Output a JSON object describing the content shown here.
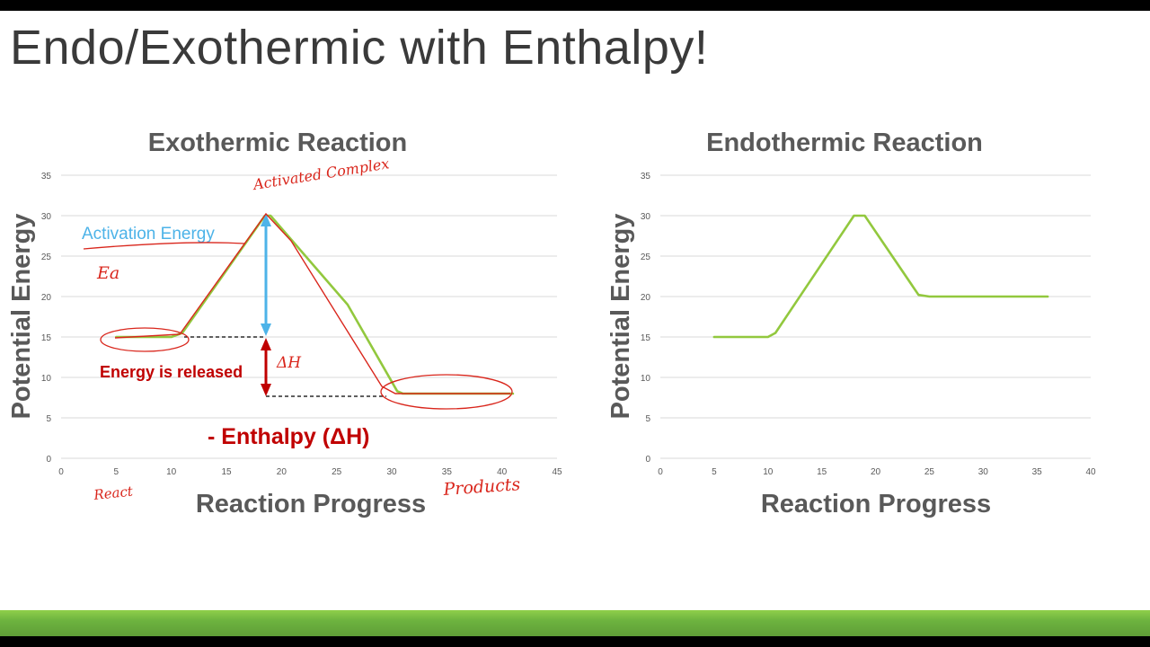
{
  "slide": {
    "title": "Endo/Exothermic with Enthalpy!"
  },
  "colors": {
    "line": "#92c83e",
    "annotation_red": "#c00000",
    "annotation_blue": "#4db3e8",
    "ink_red": "#d9261c",
    "grid": "#d9d9d9",
    "text": "#595959"
  },
  "annotations": {
    "activation_energy": "Activation Energy",
    "energy_released": "Energy is released",
    "enthalpy": "- Enthalpy (ΔH)"
  },
  "handwriting": {
    "activated_complex": "Activated Complex",
    "ea": "Ea",
    "delta_h": "ΔH",
    "react": "React",
    "products": "Products"
  },
  "chart_data": [
    {
      "type": "line",
      "title": "Exothermic Reaction",
      "xlabel": "Reaction Progress",
      "ylabel": "Potential Energy",
      "xlim": [
        0,
        45
      ],
      "ylim": [
        0,
        35
      ],
      "xticks": [
        0,
        5,
        10,
        15,
        20,
        25,
        30,
        35,
        40,
        45
      ],
      "yticks": [
        0,
        5,
        10,
        15,
        20,
        25,
        30,
        35
      ],
      "grid": true,
      "x": [
        5,
        10,
        11,
        18.5,
        19,
        26,
        30.5,
        31,
        35,
        41
      ],
      "y": [
        15,
        15,
        15.5,
        30,
        30,
        19,
        8.3,
        8,
        8,
        8
      ]
    },
    {
      "type": "line",
      "title": "Endothermic Reaction",
      "xlabel": "Reaction Progress",
      "ylabel": "Potential Energy",
      "xlim": [
        0,
        40
      ],
      "ylim": [
        0,
        35
      ],
      "xticks": [
        0,
        5,
        10,
        15,
        20,
        25,
        30,
        35,
        40
      ],
      "yticks": [
        0,
        5,
        10,
        15,
        20,
        25,
        30,
        35
      ],
      "grid": true,
      "x": [
        5,
        10,
        10.7,
        18,
        19,
        24,
        25,
        36
      ],
      "y": [
        15,
        15,
        15.5,
        30,
        30,
        20.2,
        20,
        20
      ]
    }
  ]
}
